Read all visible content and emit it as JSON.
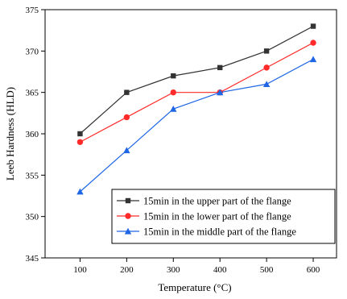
{
  "chart_data": {
    "type": "line",
    "x": [
      100,
      200,
      300,
      400,
      500,
      600
    ],
    "xlabel": "Temperature (°C)",
    "ylabel": "Leeb Hardness (HLD)",
    "xticks": [
      100,
      200,
      300,
      400,
      500,
      600
    ],
    "yticks": [
      345,
      350,
      355,
      360,
      365,
      370,
      375
    ],
    "xlim": [
      25,
      650
    ],
    "ylim": [
      345,
      375
    ],
    "grid": false,
    "legend_position": "bottom-right",
    "series": [
      {
        "name": "15min in the upper part of the flange",
        "values": [
          360,
          365,
          367,
          368,
          370,
          373
        ],
        "color": "#333333",
        "marker": "square"
      },
      {
        "name": "15min in the lower part of the flange",
        "values": [
          359,
          362,
          365,
          365,
          368,
          371
        ],
        "color": "#ff2a2a",
        "marker": "circle"
      },
      {
        "name": "15min in the middle part of the flange",
        "values": [
          353,
          358,
          363,
          365,
          366,
          369
        ],
        "color": "#1f66e5",
        "marker": "triangle"
      }
    ]
  }
}
